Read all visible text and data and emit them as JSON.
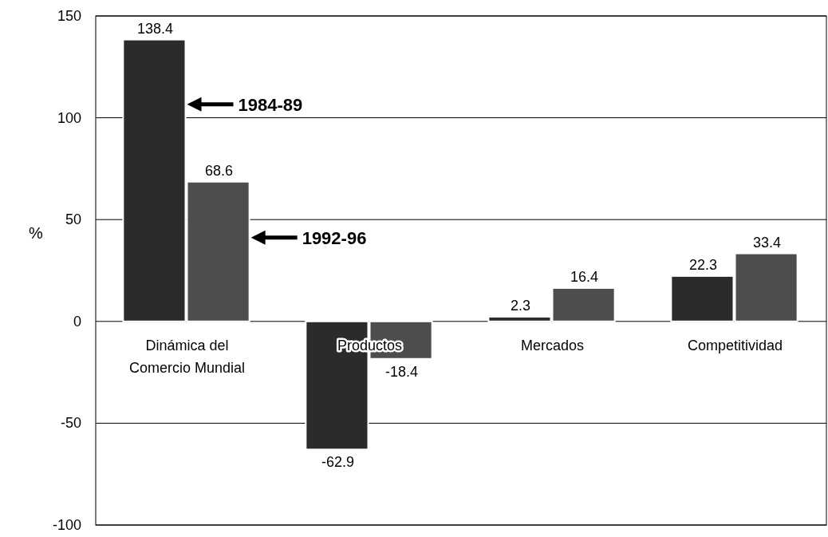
{
  "chart_data": {
    "type": "bar",
    "ylabel": "%",
    "categories": [
      "Dinámica del Comercio Mundial",
      "Productos",
      "Mercados",
      "Competitividad"
    ],
    "series": [
      {
        "name": "1984-89",
        "color": "#2b2b2b",
        "values": [
          138.4,
          -62.9,
          2.3,
          22.3
        ]
      },
      {
        "name": "1992-96",
        "color": "#4d4d4d",
        "values": [
          68.6,
          -18.4,
          16.4,
          33.4
        ]
      }
    ],
    "ylim": [
      -100,
      150
    ],
    "yticks": [
      -100,
      -50,
      0,
      50,
      100,
      150
    ],
    "grid": "y",
    "data_labels": true
  }
}
